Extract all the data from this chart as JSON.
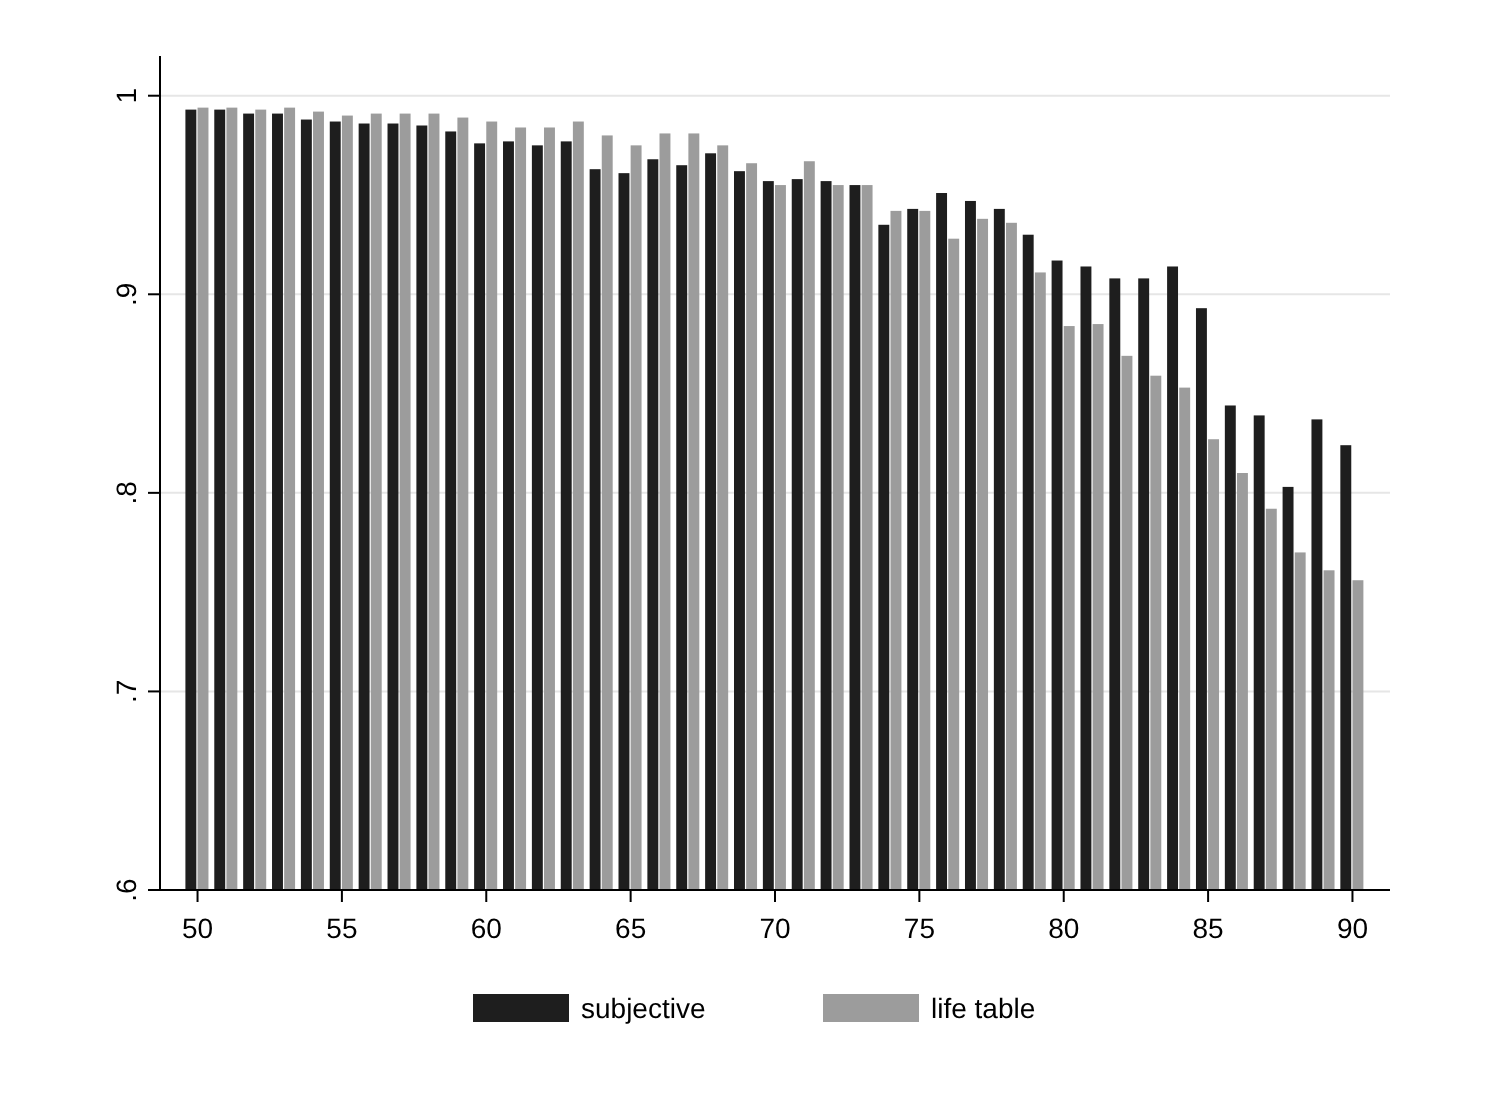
{
  "chart_data": {
    "type": "bar",
    "x": [
      50,
      51,
      52,
      53,
      54,
      55,
      56,
      57,
      58,
      59,
      60,
      61,
      62,
      63,
      64,
      65,
      66,
      67,
      68,
      69,
      70,
      71,
      72,
      73,
      74,
      75,
      76,
      77,
      78,
      79,
      80,
      81,
      82,
      83,
      84,
      85,
      86,
      87,
      88,
      89,
      90
    ],
    "series": [
      {
        "name": "subjective",
        "color": "#1e1e1e",
        "values": [
          0.993,
          0.993,
          0.991,
          0.991,
          0.988,
          0.987,
          0.986,
          0.986,
          0.985,
          0.982,
          0.976,
          0.977,
          0.975,
          0.977,
          0.963,
          0.961,
          0.968,
          0.965,
          0.971,
          0.962,
          0.957,
          0.958,
          0.957,
          0.955,
          0.935,
          0.943,
          0.951,
          0.947,
          0.943,
          0.93,
          0.917,
          0.914,
          0.908,
          0.908,
          0.914,
          0.893,
          0.844,
          0.839,
          0.803,
          0.837,
          0.824
        ]
      },
      {
        "name": "life table",
        "color": "#9c9c9c",
        "values": [
          0.994,
          0.994,
          0.993,
          0.994,
          0.992,
          0.99,
          0.991,
          0.991,
          0.991,
          0.989,
          0.987,
          0.984,
          0.984,
          0.987,
          0.98,
          0.975,
          0.981,
          0.981,
          0.975,
          0.966,
          0.955,
          0.967,
          0.955,
          0.955,
          0.942,
          0.942,
          0.928,
          0.938,
          0.936,
          0.911,
          0.884,
          0.885,
          0.869,
          0.859,
          0.853,
          0.827,
          0.81,
          0.792,
          0.77,
          0.761,
          0.756
        ]
      }
    ],
    "xlim": [
      48.7,
      91.3
    ],
    "xticks": [
      50,
      55,
      60,
      65,
      70,
      75,
      80,
      85,
      90
    ],
    "ylim": [
      0.6,
      1.02
    ],
    "yticks": [
      {
        "value": 0.6,
        "label": ".6"
      },
      {
        "value": 0.7,
        "label": ".7"
      },
      {
        "value": 0.8,
        "label": ".8"
      },
      {
        "value": 0.9,
        "label": ".9"
      },
      {
        "value": 1,
        "label": "1"
      }
    ],
    "grid": "y",
    "legend": "bottom"
  }
}
